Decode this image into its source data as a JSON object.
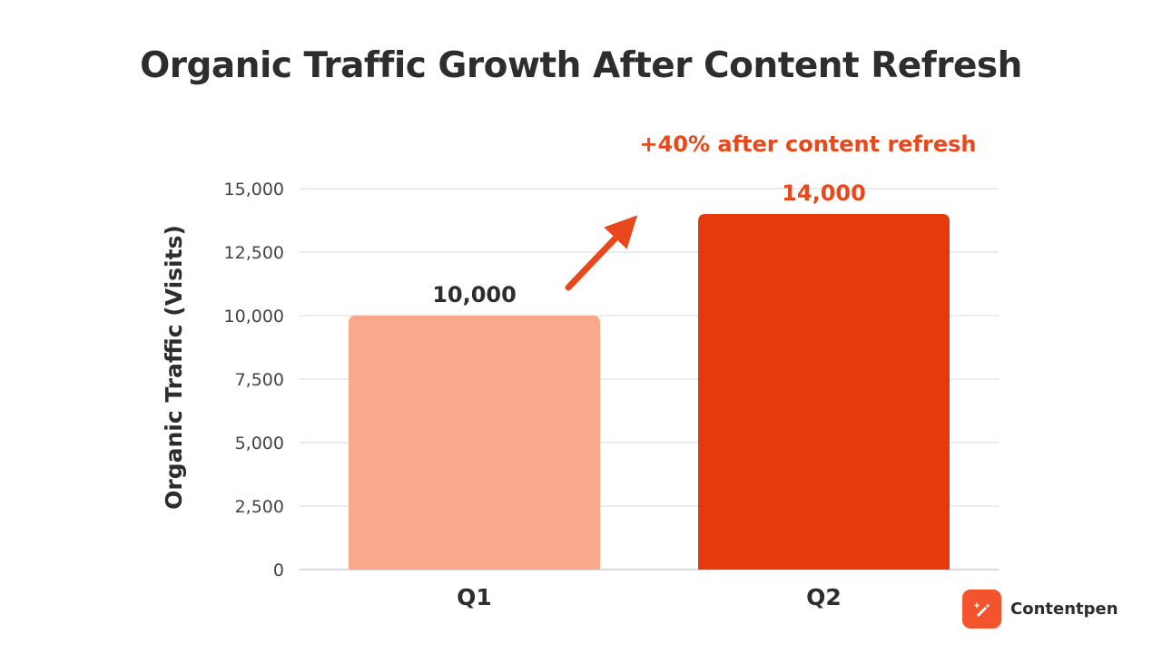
{
  "colors": {
    "q1_bar": "#fba98c",
    "q2_bar": "#e73a0c",
    "accent": "#e8481c",
    "title": "#2d2d2d",
    "grid": "#d9d9d9",
    "brand_logo_bg": "#f2542d"
  },
  "chart_data": {
    "type": "bar",
    "title": "Organic Traffic Growth After Content Refresh",
    "xlabel": "",
    "ylabel": "Organic Traffic (Visits)",
    "categories": [
      "Q1",
      "Q2"
    ],
    "values": [
      10000,
      14000
    ],
    "value_labels": [
      "10,000",
      "14,000"
    ],
    "ylim": [
      0,
      15000
    ],
    "yticks": [
      0,
      2500,
      5000,
      7500,
      10000,
      12500,
      15000
    ],
    "ytick_labels": [
      "0",
      "2,500",
      "5,000",
      "7,500",
      "10,000",
      "12,500",
      "15,000"
    ],
    "grid": true,
    "annotation": "+40% after content refresh"
  },
  "brand": {
    "name": "Contentpen",
    "icon": "magic-pen-icon"
  }
}
